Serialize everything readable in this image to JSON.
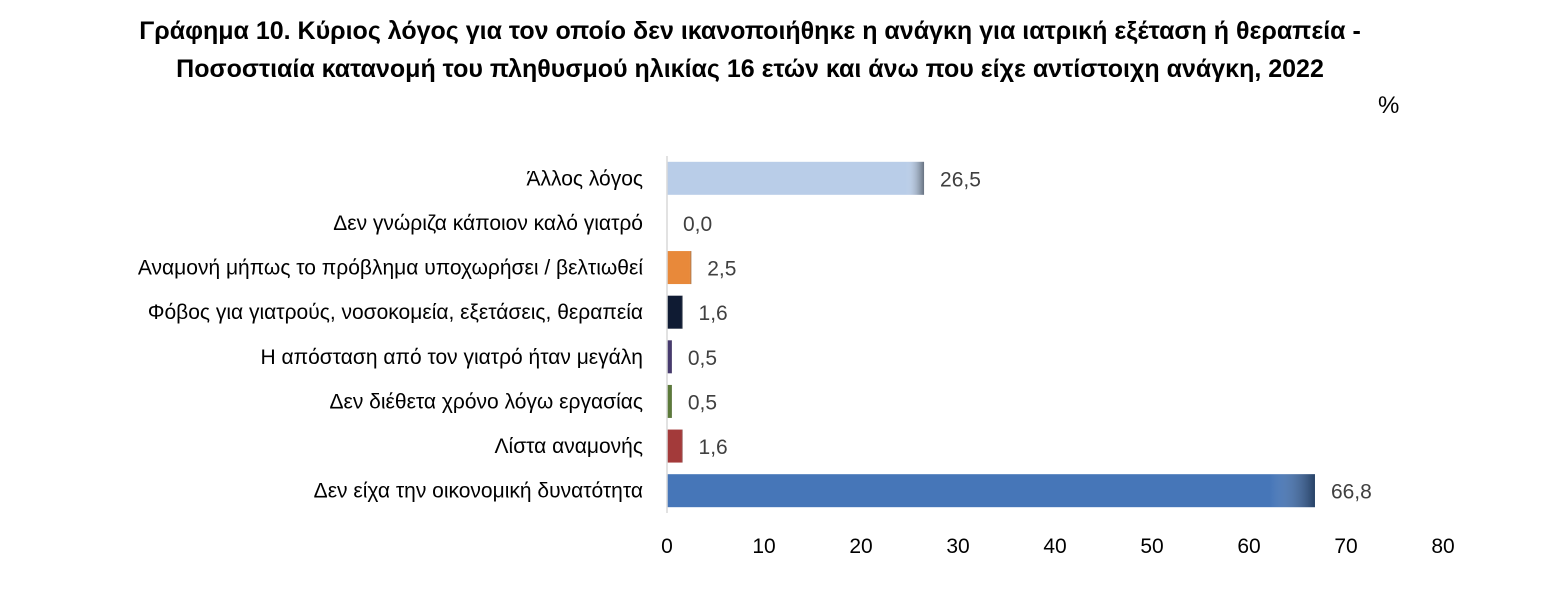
{
  "title_lines": [
    "Γράφημα 10. Κύριος λόγος για τον οποίο δεν ικανοποιήθηκε η ανάγκη για ιατρική εξέταση ή θεραπεία -",
    "Ποσοστιαία κατανομή του πληθυσμού ηλικίας 16 ετών και άνω που είχε αντίστοιχη ανάγκη, 2022"
  ],
  "unit": "%",
  "chart_data": {
    "type": "bar",
    "orientation": "horizontal",
    "title": "Γράφημα 10. Κύριος λόγος για τον οποίο δεν ικανοποιήθηκε η ανάγκη για ιατρική εξέταση ή θεραπεία - Ποσοστιαία κατανομή του πληθυσμού ηλικίας 16 ετών και άνω που είχε αντίστοιχη ανάγκη, 2022",
    "categories": [
      "Άλλος λόγος",
      "Δεν γνώριζα κάποιον καλό γιατρό",
      "Αναμονή μήπως το πρόβλημα υποχωρήσει / βελτιωθεί",
      "Φόβος για γιατρούς, νοσοκομεία, εξετάσεις, θεραπεία",
      "Η απόσταση από τον γιατρό ήταν μεγάλη",
      "Δεν διέθετα χρόνο λόγω εργασίας",
      "Λίστα αναμονής",
      "Δεν είχα την οικονομική δυνατότητα"
    ],
    "values": [
      26.5,
      0.0,
      2.5,
      1.6,
      0.5,
      0.5,
      1.6,
      66.8
    ],
    "value_labels": [
      "26,5",
      "0,0",
      "2,5",
      "1,6",
      "0,5",
      "0,5",
      "1,6",
      "66,8"
    ],
    "colors": [
      "#b9cde8",
      "#9aa9c8",
      "#e8893a",
      "#0f1b33",
      "#463a6e",
      "#5c7a3a",
      "#a33a3a",
      "#4676b8"
    ],
    "xlim": [
      0,
      80
    ],
    "xticks": [
      0,
      10,
      20,
      30,
      40,
      50,
      60,
      70,
      80
    ],
    "xlabel": "",
    "ylabel": "",
    "grid": false,
    "legend": "none"
  }
}
